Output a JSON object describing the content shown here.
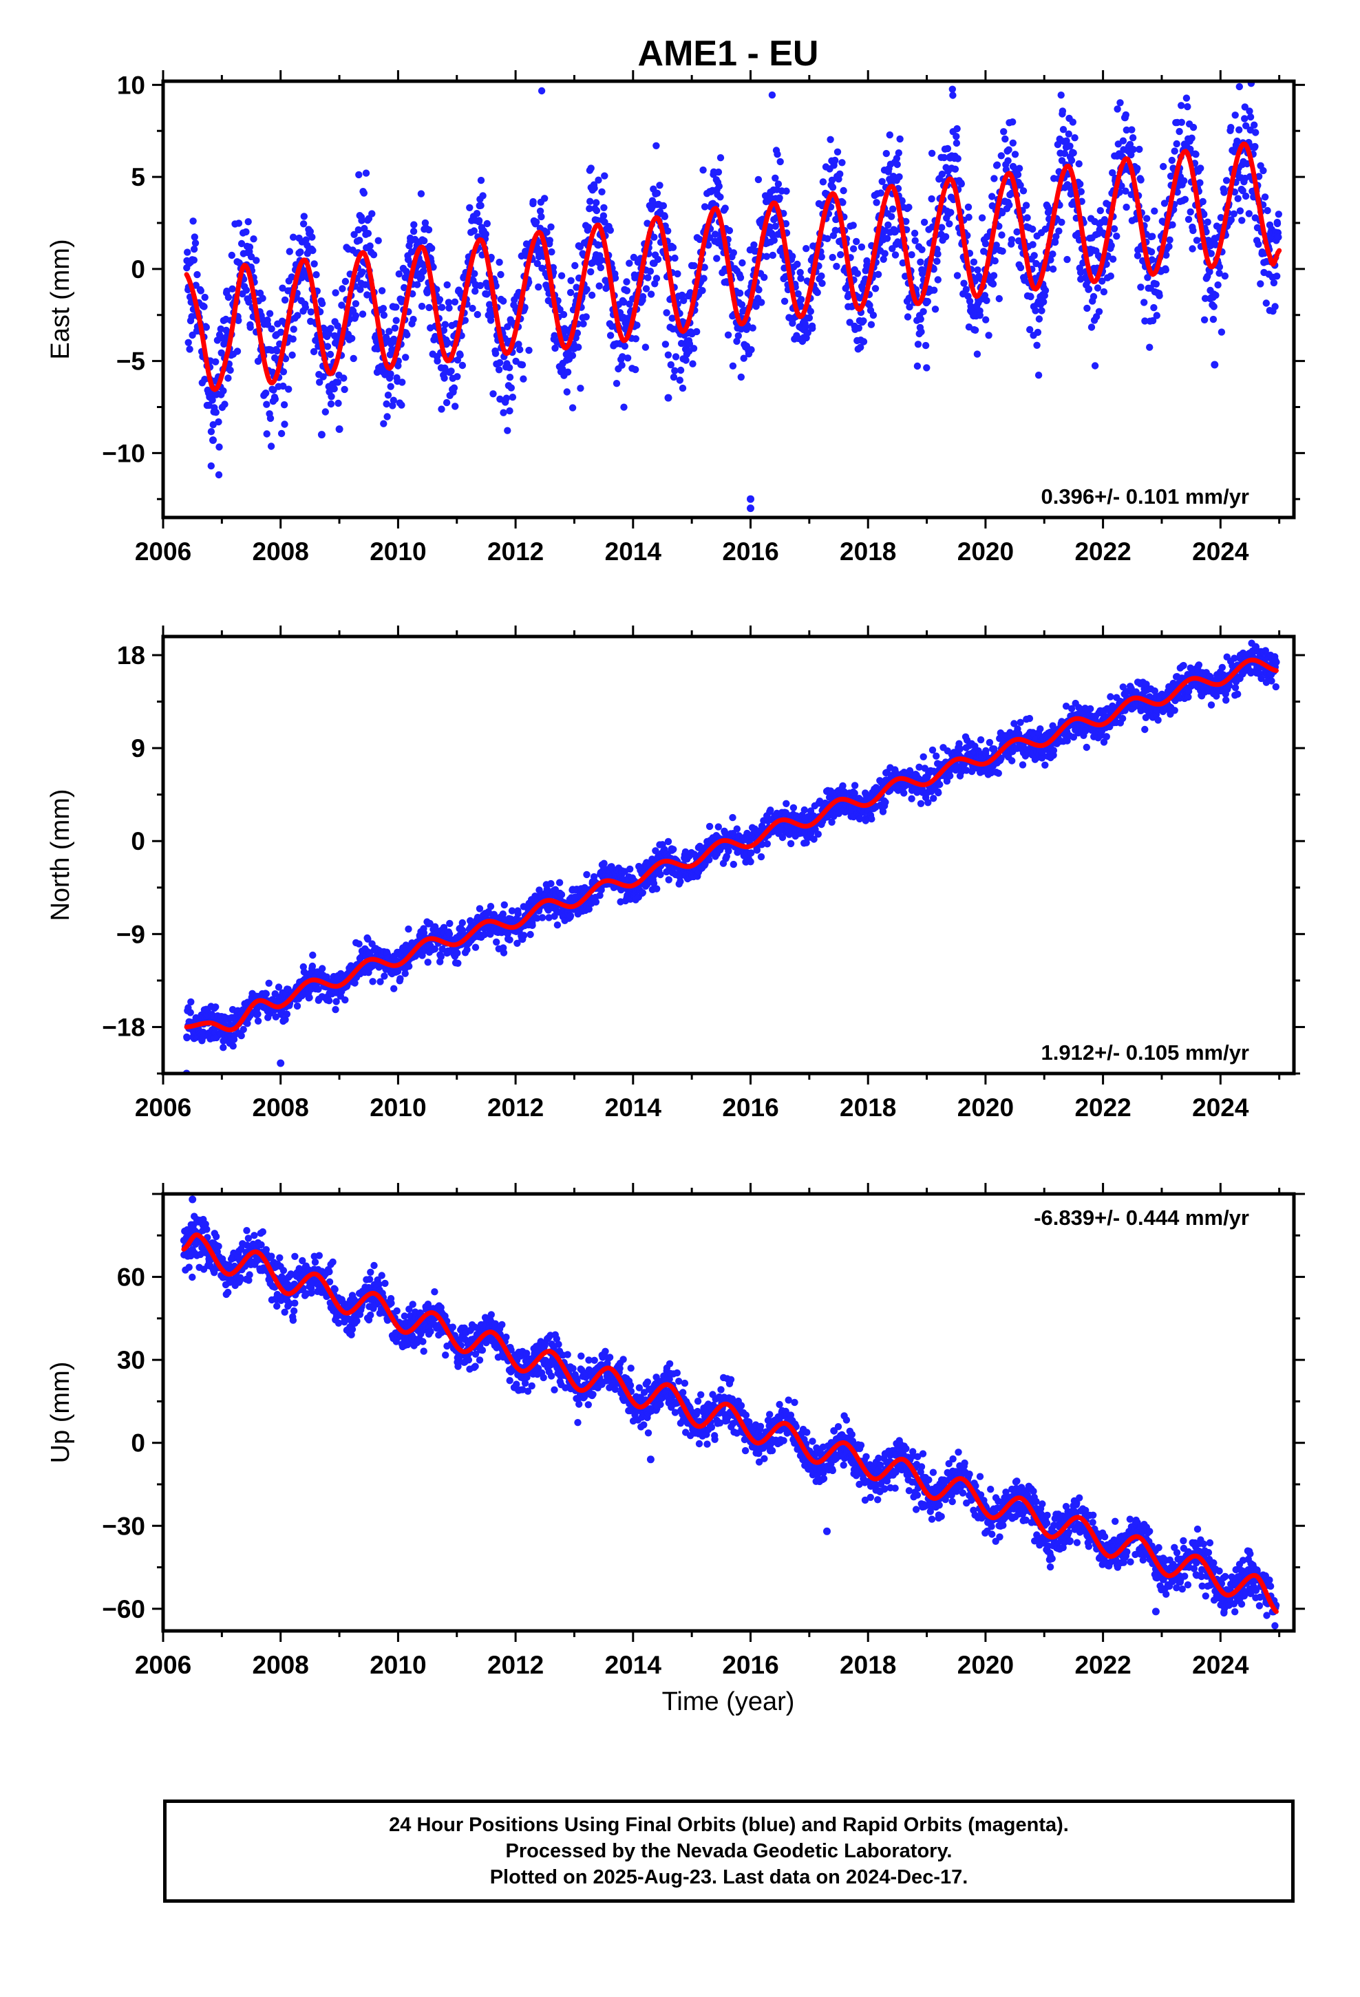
{
  "figure": {
    "title": "AME1 - EU",
    "xlabel": "Time (year)",
    "colors": {
      "points": "#1f1fff",
      "fit": "#ff0000",
      "frame": "#000000"
    }
  },
  "chart_data": [
    {
      "type": "scatter",
      "name": "east",
      "ylabel": "East (mm)",
      "xlim": [
        2006.0,
        2025.25
      ],
      "ylim": [
        -13.5,
        10.2
      ],
      "xticks": [
        2006,
        2008,
        2010,
        2012,
        2014,
        2016,
        2018,
        2020,
        2022,
        2024
      ],
      "yticks": [
        -10,
        -5,
        0,
        5,
        10
      ],
      "ytick_labels": [
        "−10",
        "−5",
        "0",
        "5",
        "10"
      ],
      "rate_label": "0.396+/- 0.101 mm/yr",
      "rate_position": "bottom-right",
      "series": [
        {
          "name": "",
          "kind": "fit_curve",
          "color": "#ff0000",
          "x": [
            2006.4,
            2006.6,
            2006.85,
            2007.1,
            2007.4,
            2007.85,
            2008.4,
            2008.85,
            2009.4,
            2009.85,
            2010.4,
            2010.85,
            2011.4,
            2011.85,
            2012.4,
            2012.85,
            2013.4,
            2013.85,
            2014.4,
            2014.85,
            2015.4,
            2015.85,
            2016.4,
            2016.85,
            2017.4,
            2017.85,
            2018.4,
            2018.85,
            2019.4,
            2019.85,
            2020.4,
            2020.85,
            2021.4,
            2021.85,
            2022.4,
            2022.85,
            2023.4,
            2023.85,
            2024.4,
            2024.85,
            2025.0
          ],
          "y": [
            -0.3,
            -2.5,
            -6.5,
            -4.5,
            0.2,
            -6.2,
            0.5,
            -5.7,
            0.9,
            -5.4,
            1.2,
            -5.0,
            1.6,
            -4.6,
            2.0,
            -4.3,
            2.4,
            -3.9,
            2.8,
            -3.4,
            3.3,
            -3.0,
            3.6,
            -2.6,
            4.1,
            -2.2,
            4.5,
            -1.9,
            4.9,
            -1.5,
            5.2,
            -1.1,
            5.6,
            -0.7,
            6.0,
            -0.3,
            6.4,
            0.1,
            6.8,
            0.6,
            1.0
          ]
        },
        {
          "name": "",
          "kind": "daily_positions_summary",
          "color": "#1f1fff",
          "x": [
            2006.5,
            2007.5,
            2008.5,
            2009.5,
            2010.5,
            2011.5,
            2012.5,
            2013.5,
            2014.5,
            2015.5,
            2016.5,
            2017.5,
            2018.5,
            2019.5,
            2020.5,
            2021.5,
            2022.5,
            2023.5,
            2024.5
          ],
          "y": [
            -2.5,
            -2.8,
            -2.7,
            -2.4,
            -2.0,
            -1.6,
            -1.2,
            -0.8,
            -0.3,
            0.1,
            0.5,
            0.9,
            1.3,
            1.7,
            2.0,
            2.5,
            2.9,
            3.3,
            3.5
          ],
          "spread": 5.0,
          "outliers": [
            [
              2006.85,
              -9.3
            ],
            [
              2008.7,
              -9.0
            ],
            [
              2009.0,
              -8.7
            ],
            [
              2014.6,
              -7.0
            ],
            [
              2016.0,
              -12.5
            ],
            [
              2016.0,
              -13.0
            ],
            [
              2023.9,
              -5.2
            ]
          ]
        }
      ]
    },
    {
      "type": "scatter",
      "name": "north",
      "ylabel": "North (mm)",
      "xlim": [
        2006.0,
        2025.25
      ],
      "ylim": [
        -22.5,
        19.8
      ],
      "xticks": [
        2006,
        2008,
        2010,
        2012,
        2014,
        2016,
        2018,
        2020,
        2022,
        2024
      ],
      "yticks": [
        -18,
        -9,
        0,
        9,
        18
      ],
      "ytick_labels": [
        "−18",
        "−9",
        "0",
        "9",
        "18"
      ],
      "rate_label": "1.912+/- 0.105 mm/yr",
      "rate_position": "bottom-right",
      "series": [
        {
          "name": "",
          "kind": "fit_curve",
          "color": "#ff0000",
          "x": [
            2006.4,
            2006.8,
            2007.2,
            2007.6,
            2008.0,
            2008.5,
            2009.0,
            2009.5,
            2010.0,
            2010.5,
            2011.0,
            2011.5,
            2012.0,
            2012.5,
            2013.0,
            2013.5,
            2014.0,
            2014.5,
            2015.0,
            2015.5,
            2016.0,
            2016.5,
            2017.0,
            2017.5,
            2018.0,
            2018.5,
            2019.0,
            2019.5,
            2020.0,
            2020.5,
            2021.0,
            2021.5,
            2022.0,
            2022.5,
            2023.0,
            2023.5,
            2024.0,
            2024.5,
            2024.95
          ],
          "y": [
            -18.0,
            -17.6,
            -18.2,
            -15.5,
            -16.0,
            -13.5,
            -14.0,
            -11.5,
            -12.0,
            -9.5,
            -10.0,
            -7.8,
            -8.3,
            -5.8,
            -6.3,
            -3.9,
            -4.3,
            -2.0,
            -2.4,
            0.0,
            -0.5,
            2.0,
            1.5,
            4.0,
            3.5,
            6.0,
            5.5,
            7.9,
            7.5,
            9.8,
            9.3,
            11.8,
            11.3,
            13.8,
            13.3,
            15.7,
            15.2,
            17.5,
            16.5
          ]
        },
        {
          "name": "",
          "kind": "daily_positions_summary",
          "color": "#1f1fff",
          "x": [
            2006.5,
            2007.5,
            2008.5,
            2009.5,
            2010.5,
            2011.5,
            2012.5,
            2013.5,
            2014.5,
            2015.5,
            2016.5,
            2017.5,
            2018.5,
            2019.5,
            2020.5,
            2021.5,
            2022.5,
            2023.5,
            2024.5
          ],
          "y": [
            -17.8,
            -16.5,
            -14.5,
            -12.5,
            -10.5,
            -8.5,
            -6.5,
            -4.5,
            -2.5,
            -0.5,
            1.0,
            3.0,
            5.0,
            7.0,
            8.8,
            10.8,
            12.8,
            14.5,
            16.3
          ],
          "spread": 2.5,
          "outliers": [
            [
              2006.4,
              -22.5
            ],
            [
              2008.0,
              -21.5
            ],
            [
              2016.5,
              1.0
            ],
            [
              2024.6,
              18.8
            ]
          ]
        }
      ]
    },
    {
      "type": "scatter",
      "name": "up",
      "ylabel": "Up (mm)",
      "xlim": [
        2006.0,
        2025.25
      ],
      "ylim": [
        -68.0,
        90.0
      ],
      "xticks": [
        2006,
        2008,
        2010,
        2012,
        2014,
        2016,
        2018,
        2020,
        2022,
        2024
      ],
      "yticks": [
        -60,
        -30,
        0,
        30,
        60
      ],
      "ytick_labels": [
        "−60",
        "−30",
        "0",
        "30",
        "60"
      ],
      "rate_label": "-6.839+/- 0.444 mm/yr",
      "rate_position": "top-right",
      "series": [
        {
          "name": "",
          "kind": "fit_curve",
          "color": "#ff0000",
          "x": [
            2006.35,
            2006.6,
            2007.1,
            2007.6,
            2008.1,
            2008.6,
            2009.1,
            2009.6,
            2010.1,
            2010.6,
            2011.1,
            2011.6,
            2012.1,
            2012.6,
            2013.1,
            2013.6,
            2014.1,
            2014.6,
            2015.1,
            2015.6,
            2016.1,
            2016.6,
            2017.1,
            2017.6,
            2018.1,
            2018.6,
            2019.1,
            2019.6,
            2020.1,
            2020.6,
            2021.1,
            2021.6,
            2022.1,
            2022.6,
            2023.1,
            2023.6,
            2024.1,
            2024.6,
            2024.95
          ],
          "y": [
            70,
            75,
            61,
            69,
            54,
            61,
            47,
            54,
            40,
            47,
            33,
            40,
            26,
            33,
            19,
            27,
            13,
            21,
            6,
            14,
            0,
            7,
            -7,
            0,
            -13,
            -6,
            -20,
            -13,
            -27,
            -20,
            -34,
            -27,
            -41,
            -34,
            -48,
            -41,
            -55,
            -48,
            -61
          ]
        },
        {
          "name": "",
          "kind": "daily_positions_summary",
          "color": "#1f1fff",
          "x": [
            2006.5,
            2007.5,
            2008.5,
            2009.5,
            2010.5,
            2011.5,
            2012.5,
            2013.5,
            2014.5,
            2015.5,
            2016.5,
            2017.5,
            2018.5,
            2019.5,
            2020.5,
            2021.5,
            2022.5,
            2023.5,
            2024.5
          ],
          "y": [
            72,
            64,
            58,
            51,
            44,
            37,
            30,
            23,
            16,
            9,
            3,
            -3,
            -10,
            -17,
            -24,
            -31,
            -38,
            -45,
            -52
          ],
          "spread": 12.0,
          "outliers": [
            [
              2006.5,
              88
            ],
            [
              2014.3,
              -6
            ],
            [
              2017.3,
              -32
            ],
            [
              2022.9,
              -61
            ]
          ]
        }
      ]
    }
  ],
  "footer": {
    "lines": [
      "24 Hour Positions Using Final Orbits (blue) and Rapid Orbits (magenta).",
      "Processed by the Nevada Geodetic Laboratory.",
      "Plotted on 2025-Aug-23. Last data on 2024-Dec-17."
    ]
  }
}
